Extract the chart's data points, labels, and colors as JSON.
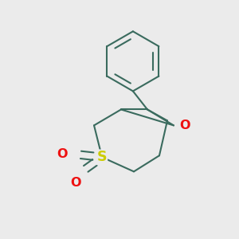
{
  "bg_color": "#ebebeb",
  "bond_color": "#3a6b5e",
  "sulfur_color": "#cccc00",
  "oxygen_color": "#ee1111",
  "line_width": 1.5,
  "figsize": [
    3.0,
    3.0
  ],
  "dpi": 100,
  "xlim": [
    -1.6,
    1.6
  ],
  "ylim": [
    -1.5,
    1.7
  ]
}
